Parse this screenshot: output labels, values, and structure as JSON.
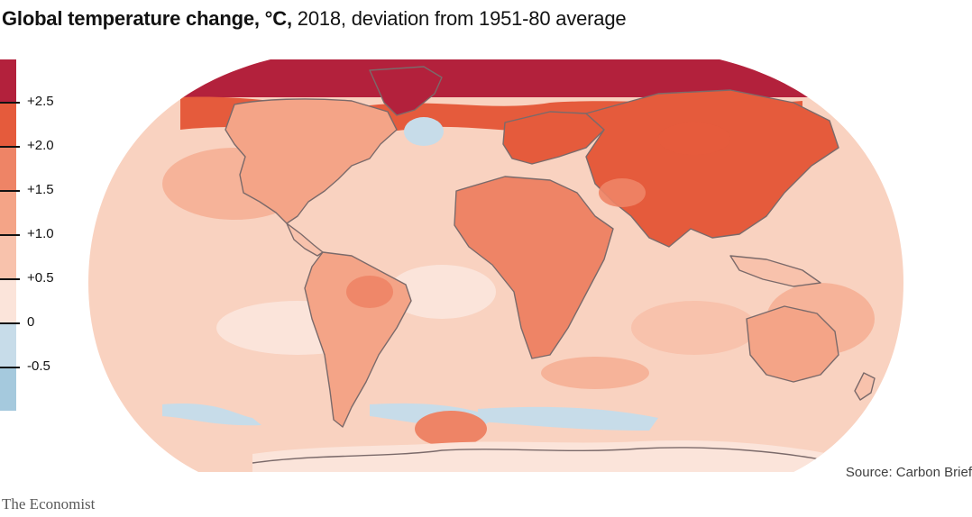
{
  "title": {
    "bold": "Global temperature change, °C,",
    "rest": " 2018, deviation from 1951-80 average"
  },
  "legend": {
    "items": [
      {
        "color": "#b3213c"
      },
      {
        "color": "#e55b3c"
      },
      {
        "color": "#ee8466"
      },
      {
        "color": "#f4a487"
      },
      {
        "color": "#f8c2ac"
      },
      {
        "color": "#fbe4da"
      },
      {
        "color": "#c7dce9"
      },
      {
        "color": "#a5c9dd"
      }
    ],
    "tick_labels": [
      "+2.5",
      "+2.0",
      "+1.5",
      "+1.0",
      "+0.5",
      "0",
      "-0.5"
    ]
  },
  "map": {
    "ocean_base_color": "#f9d2c0",
    "coastline_color": "#7b6a6a",
    "land_base_color": "#f6b399"
  },
  "source": "Source: Carbon Brief",
  "brand": "The Economist"
}
